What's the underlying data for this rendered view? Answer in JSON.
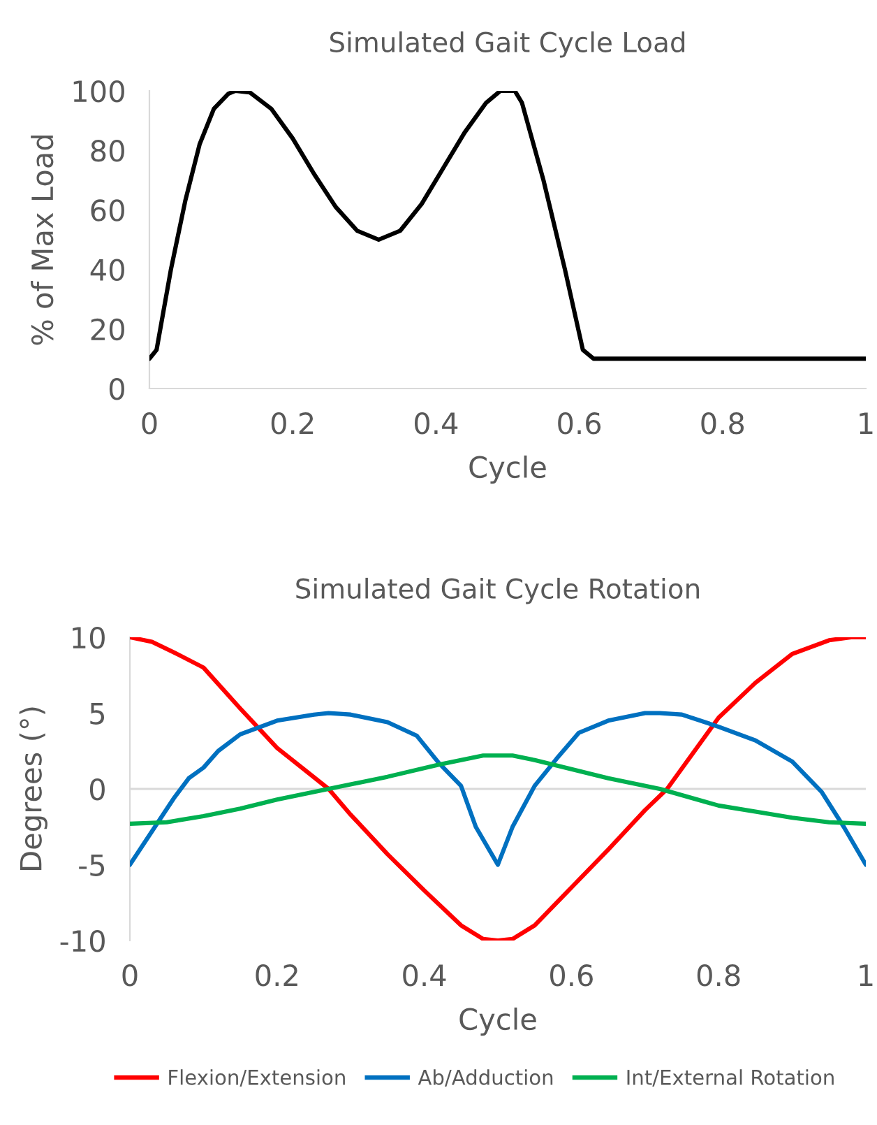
{
  "chart_data": [
    {
      "type": "line",
      "title": "Simulated Gait Cycle Load",
      "xlabel": "Cycle",
      "ylabel": "% of Max Load",
      "xlim": [
        0,
        1
      ],
      "xticks": [
        0,
        0.2,
        0.4,
        0.6,
        0.8,
        1
      ],
      "ylim": [
        0,
        100
      ],
      "yticks": [
        0,
        20,
        40,
        60,
        80,
        100
      ],
      "grid": false,
      "legend": false,
      "series": [
        {
          "color": "#000000",
          "x": [
            0,
            0.01,
            0.03,
            0.05,
            0.07,
            0.09,
            0.11,
            0.12,
            0.14,
            0.17,
            0.2,
            0.23,
            0.26,
            0.29,
            0.32,
            0.35,
            0.38,
            0.41,
            0.44,
            0.47,
            0.49,
            0.51,
            0.52,
            0.55,
            0.58,
            0.605,
            0.62,
            1
          ],
          "values": [
            10,
            13,
            40,
            63,
            82,
            94,
            99,
            100,
            99.5,
            94,
            84,
            72,
            61,
            53,
            50,
            53,
            62,
            74,
            86,
            96,
            100,
            100,
            96,
            70,
            40,
            13,
            10,
            10
          ]
        }
      ]
    },
    {
      "type": "line",
      "title": "Simulated Gait Cycle Rotation",
      "xlabel": "Cycle",
      "ylabel": "Degrees (°)",
      "xlim": [
        0,
        1
      ],
      "xticks": [
        0,
        0.2,
        0.4,
        0.6,
        0.8,
        1
      ],
      "ylim": [
        -10,
        10
      ],
      "yticks": [
        -10,
        -5,
        0,
        5,
        10
      ],
      "grid": false,
      "legend": "bottom",
      "ref_lines": [
        {
          "axis": "y",
          "value": 0,
          "color": "#d9d9d9"
        }
      ],
      "series": [
        {
          "name": "Flexion/Extension",
          "color": "#ff0000",
          "x": [
            0,
            0.03,
            0.06,
            0.1,
            0.15,
            0.2,
            0.27,
            0.3,
            0.35,
            0.4,
            0.45,
            0.48,
            0.5,
            0.52,
            0.55,
            0.6,
            0.65,
            0.7,
            0.73,
            0.8,
            0.85,
            0.9,
            0.95,
            0.98,
            1
          ],
          "values": [
            10,
            9.7,
            9,
            8,
            5.3,
            2.7,
            0,
            -1.7,
            -4.3,
            -6.7,
            -9,
            -9.9,
            -10,
            -9.9,
            -9,
            -6.5,
            -4,
            -1.4,
            0,
            4.7,
            7,
            8.9,
            9.8,
            10,
            10
          ]
        },
        {
          "name": "Ab/Adduction",
          "color": "#0070c0",
          "x": [
            0,
            0.03,
            0.06,
            0.08,
            0.1,
            0.12,
            0.15,
            0.2,
            0.25,
            0.27,
            0.3,
            0.35,
            0.39,
            0.42,
            0.45,
            0.47,
            0.5,
            0.52,
            0.55,
            0.58,
            0.61,
            0.65,
            0.7,
            0.72,
            0.75,
            0.8,
            0.85,
            0.9,
            0.94,
            0.97,
            1
          ],
          "values": [
            -5,
            -2.8,
            -0.6,
            0.7,
            1.4,
            2.5,
            3.6,
            4.5,
            4.9,
            5,
            4.9,
            4.4,
            3.5,
            1.7,
            0.2,
            -2.5,
            -5,
            -2.5,
            0.2,
            2,
            3.7,
            4.5,
            5,
            5,
            4.9,
            4.1,
            3.2,
            1.8,
            -0.2,
            -2.5,
            -5
          ]
        },
        {
          "name": "Int/External Rotation",
          "color": "#00b050",
          "x": [
            0,
            0.05,
            0.1,
            0.15,
            0.2,
            0.27,
            0.35,
            0.42,
            0.48,
            0.52,
            0.55,
            0.6,
            0.65,
            0.72,
            0.8,
            0.85,
            0.9,
            0.95,
            1
          ],
          "values": [
            -2.3,
            -2.2,
            -1.8,
            -1.3,
            -0.7,
            0,
            0.8,
            1.6,
            2.2,
            2.2,
            1.9,
            1.3,
            0.7,
            0,
            -1.1,
            -1.5,
            -1.9,
            -2.2,
            -2.3
          ]
        }
      ]
    }
  ]
}
